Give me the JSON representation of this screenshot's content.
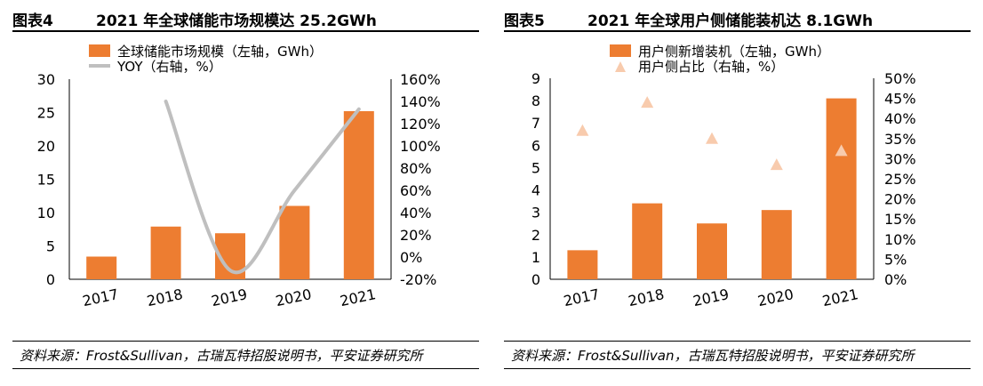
{
  "panels": [
    {
      "figure_no": "图表4",
      "title": "2021 年全球储能市场规模达 25.2GWh",
      "source": "资料来源：Frost&Sullivan，古瑞瓦特招股说明书，平安证券研究所"
    },
    {
      "figure_no": "图表5",
      "title": "2021 年全球用户侧储能装机达 8.1GWh",
      "source": "资料来源：Frost&Sullivan，古瑞瓦特招股说明书，平安证券研究所"
    }
  ],
  "colors": {
    "bar": "#ED7D31",
    "line": "#BFBFBF",
    "triangle": "#F8CBAD",
    "axis": "#000000"
  },
  "chart_data": [
    {
      "type": "bar",
      "categories": [
        "2017",
        "2018",
        "2019",
        "2020",
        "2021"
      ],
      "series": [
        {
          "name": "全球储能市场规模（左轴，GWh）",
          "type": "bar",
          "axis": "left",
          "values": [
            3.4,
            7.9,
            6.9,
            11.0,
            25.2
          ]
        },
        {
          "name": "YOY（右轴，%）",
          "type": "line",
          "axis": "right",
          "values": [
            null,
            140,
            -12,
            60,
            133
          ]
        }
      ],
      "y_left": {
        "min": 0,
        "max": 30,
        "step": 5,
        "ticks": [
          "0",
          "5",
          "10",
          "15",
          "20",
          "25",
          "30"
        ]
      },
      "y_right": {
        "min": -20,
        "max": 160,
        "step": 20,
        "ticks": [
          "-20%",
          "0%",
          "20%",
          "40%",
          "60%",
          "80%",
          "100%",
          "120%",
          "140%",
          "160%"
        ]
      },
      "grid": false,
      "legend": "top"
    },
    {
      "type": "bar",
      "categories": [
        "2017",
        "2018",
        "2019",
        "2020",
        "2021"
      ],
      "series": [
        {
          "name": "用户侧新增装机（左轴，GWh）",
          "type": "bar",
          "axis": "left",
          "values": [
            1.3,
            3.4,
            2.5,
            3.1,
            8.1
          ]
        },
        {
          "name": "用户侧占比（右轴，%）",
          "type": "scatter",
          "axis": "right",
          "values": [
            37,
            44,
            35,
            28.5,
            32
          ]
        }
      ],
      "y_left": {
        "min": 0,
        "max": 9,
        "step": 1,
        "ticks": [
          "0",
          "1",
          "2",
          "3",
          "4",
          "5",
          "6",
          "7",
          "8",
          "9"
        ]
      },
      "y_right": {
        "min": 0,
        "max": 50,
        "step": 5,
        "ticks": [
          "0%",
          "5%",
          "10%",
          "15%",
          "20%",
          "25%",
          "30%",
          "35%",
          "40%",
          "45%",
          "50%"
        ]
      },
      "grid": false,
      "legend": "top"
    }
  ]
}
